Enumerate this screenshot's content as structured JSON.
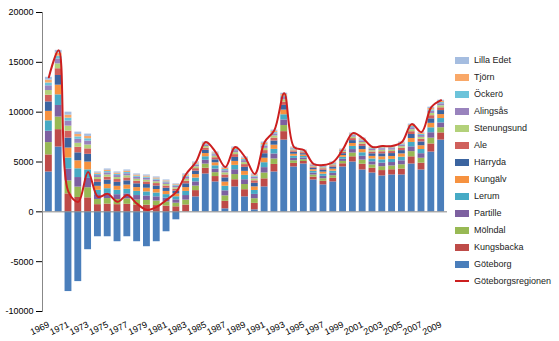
{
  "chart_data": {
    "type": "bar",
    "stacked": true,
    "legend": "right",
    "grid": false,
    "categories": [
      1969,
      null,
      1971,
      null,
      1973,
      null,
      1975,
      null,
      1977,
      null,
      1979,
      null,
      1981,
      null,
      1983,
      null,
      1985,
      null,
      1987,
      null,
      1989,
      null,
      1991,
      null,
      1993,
      null,
      1995,
      null,
      1997,
      null,
      1999,
      null,
      2001,
      null,
      2003,
      null,
      2005,
      null,
      2007,
      null,
      2009
    ],
    "ylim": [
      -10000,
      20000
    ],
    "yticks": [
      -10000,
      -5000,
      0,
      5000,
      10000,
      15000,
      20000
    ],
    "series": [
      {
        "name": "Göteborg",
        "color": "#4a7ebb",
        "values": [
          4000,
          6500,
          -8000,
          -7000,
          -3800,
          -2500,
          -2500,
          -3000,
          -2500,
          -3000,
          -3500,
          -3000,
          -2000,
          -800,
          0,
          1500,
          3800,
          3000,
          300,
          2500,
          1500,
          200,
          2500,
          4000,
          7200,
          4500,
          4800,
          3200,
          2700,
          3000,
          4500,
          5000,
          4200,
          3900,
          3600,
          3700,
          3700,
          4800,
          4200,
          6000,
          7200
        ]
      },
      {
        "name": "Kungsbacka",
        "color": "#be4b48",
        "values": [
          1710,
          1746,
          1800,
          1440,
          1404,
          720,
          774,
          720,
          756,
          684,
          666,
          630,
          576,
          504,
          684,
          630,
          576,
          540,
          756,
          720,
          720,
          648,
          810,
          756,
          846,
          360,
          252,
          288,
          360,
          360,
          324,
          522,
          576,
          468,
          540,
          522,
          594,
          720,
          684,
          810,
          720
        ]
      },
      {
        "name": "Mölndal",
        "color": "#98b954",
        "values": [
          1235,
          1261,
          1300,
          1040,
          1014,
          520,
          559,
          520,
          546,
          494,
          481,
          455,
          416,
          364,
          494,
          455,
          416,
          390,
          546,
          520,
          520,
          468,
          585,
          546,
          611,
          260,
          182,
          208,
          260,
          260,
          234,
          377,
          416,
          338,
          390,
          377,
          429,
          520,
          494,
          585,
          520
        ]
      },
      {
        "name": "Partille",
        "color": "#7d60a0",
        "values": [
          1140,
          1164,
          1200,
          960,
          936,
          480,
          516,
          480,
          504,
          456,
          444,
          420,
          384,
          336,
          456,
          420,
          384,
          360,
          504,
          480,
          480,
          432,
          540,
          504,
          564,
          240,
          168,
          192,
          240,
          240,
          216,
          348,
          384,
          312,
          360,
          348,
          396,
          480,
          456,
          540,
          480
        ]
      },
      {
        "name": "Lerum",
        "color": "#46aac5",
        "values": [
          1045,
          1067,
          1100,
          880,
          858,
          440,
          473,
          440,
          462,
          418,
          407,
          385,
          352,
          308,
          418,
          385,
          352,
          330,
          462,
          440,
          440,
          396,
          495,
          462,
          517,
          220,
          154,
          176,
          220,
          220,
          198,
          319,
          352,
          286,
          330,
          319,
          363,
          440,
          418,
          495,
          440
        ]
      },
      {
        "name": "Kungälv",
        "color": "#f69240",
        "values": [
          950,
          970,
          1000,
          800,
          780,
          400,
          430,
          400,
          420,
          380,
          370,
          350,
          320,
          280,
          380,
          350,
          320,
          300,
          420,
          400,
          400,
          360,
          450,
          420,
          470,
          200,
          140,
          160,
          200,
          200,
          180,
          290,
          320,
          260,
          300,
          290,
          330,
          400,
          380,
          450,
          400
        ]
      },
      {
        "name": "Härryda",
        "color": "#3b64a0",
        "values": [
          950,
          970,
          1000,
          800,
          780,
          400,
          430,
          400,
          420,
          380,
          370,
          350,
          320,
          280,
          380,
          350,
          320,
          300,
          420,
          400,
          400,
          360,
          450,
          420,
          470,
          200,
          140,
          160,
          200,
          200,
          180,
          290,
          320,
          260,
          300,
          290,
          330,
          400,
          380,
          450,
          400
        ]
      },
      {
        "name": "Ale",
        "color": "#d0605c",
        "values": [
          665,
          679,
          700,
          560,
          546,
          280,
          301,
          280,
          294,
          266,
          259,
          245,
          224,
          196,
          266,
          245,
          224,
          210,
          294,
          280,
          280,
          252,
          315,
          294,
          329,
          140,
          98,
          112,
          140,
          140,
          126,
          203,
          224,
          182,
          210,
          203,
          231,
          280,
          266,
          315,
          280
        ]
      },
      {
        "name": "Stenungsund",
        "color": "#b3d17a",
        "values": [
          475,
          485,
          500,
          400,
          390,
          200,
          215,
          200,
          210,
          190,
          185,
          175,
          160,
          140,
          190,
          175,
          160,
          150,
          210,
          200,
          200,
          180,
          225,
          210,
          235,
          100,
          70,
          80,
          100,
          100,
          90,
          145,
          160,
          130,
          150,
          145,
          165,
          200,
          190,
          225,
          200
        ]
      },
      {
        "name": "Alingsås",
        "color": "#9983bd",
        "values": [
          475,
          485,
          500,
          400,
          390,
          200,
          215,
          200,
          210,
          190,
          185,
          175,
          160,
          140,
          190,
          175,
          160,
          150,
          210,
          200,
          200,
          180,
          225,
          210,
          235,
          100,
          70,
          80,
          100,
          100,
          90,
          145,
          160,
          130,
          150,
          145,
          165,
          200,
          190,
          225,
          200
        ]
      },
      {
        "name": "Öckerö",
        "color": "#6cc3da",
        "values": [
          285,
          291,
          300,
          240,
          234,
          120,
          129,
          120,
          126,
          114,
          111,
          105,
          96,
          84,
          114,
          105,
          96,
          90,
          126,
          120,
          120,
          108,
          135,
          126,
          141,
          60,
          42,
          48,
          60,
          60,
          54,
          87,
          96,
          78,
          90,
          87,
          99,
          120,
          114,
          135,
          120
        ]
      },
      {
        "name": "Tjörn",
        "color": "#f9a868",
        "values": [
          285,
          291,
          300,
          240,
          234,
          120,
          129,
          120,
          126,
          114,
          111,
          105,
          96,
          84,
          114,
          105,
          96,
          90,
          126,
          120,
          120,
          108,
          135,
          126,
          141,
          60,
          42,
          48,
          60,
          60,
          54,
          87,
          96,
          78,
          90,
          87,
          99,
          120,
          114,
          135,
          120
        ]
      },
      {
        "name": "Lilla Edet",
        "color": "#a5bde0",
        "values": [
          285,
          291,
          300,
          240,
          234,
          120,
          129,
          120,
          126,
          114,
          111,
          105,
          96,
          84,
          114,
          105,
          96,
          90,
          126,
          120,
          120,
          108,
          135,
          126,
          141,
          60,
          42,
          48,
          60,
          60,
          54,
          87,
          96,
          78,
          90,
          87,
          99,
          120,
          114,
          135,
          120
        ]
      },
      {
        "name": "Göteborgsregionen",
        "color": "#cc1f1f",
        "type": "line",
        "values": [
          13500,
          16200,
          2000,
          1000,
          4000,
          1500,
          1800,
          1000,
          1700,
          800,
          200,
          500,
          1200,
          2000,
          3800,
          5000,
          7000,
          6000,
          4500,
          6500,
          5500,
          3800,
          7000,
          8200,
          11900,
          6500,
          6200,
          4800,
          4700,
          5000,
          6300,
          7900,
          7400,
          6500,
          6600,
          6600,
          7000,
          8800,
          8000,
          10500,
          11200
        ]
      }
    ]
  }
}
